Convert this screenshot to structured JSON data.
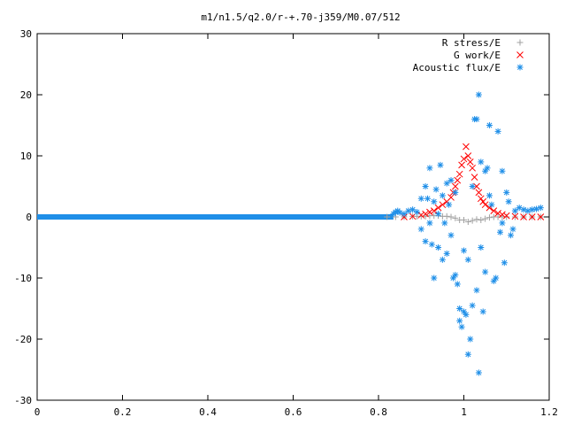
{
  "chart_data": {
    "type": "scatter",
    "title": "m1/n1.5/q2.0/r-+.70-j359/M0.07/512",
    "xlabel": "",
    "ylabel": "",
    "xlim": [
      0,
      1.2
    ],
    "ylim": [
      -30,
      30
    ],
    "x_ticks": [
      {
        "v": 0,
        "label": "0"
      },
      {
        "v": 0.2,
        "label": "0.2"
      },
      {
        "v": 0.4,
        "label": "0.4"
      },
      {
        "v": 0.6,
        "label": "0.6"
      },
      {
        "v": 0.8,
        "label": "0.8"
      },
      {
        "v": 1.0,
        "label": "1"
      },
      {
        "v": 1.2,
        "label": "1.2"
      }
    ],
    "y_ticks": [
      {
        "v": -30,
        "label": "-30"
      },
      {
        "v": -20,
        "label": "-20"
      },
      {
        "v": -10,
        "label": "-10"
      },
      {
        "v": 0,
        "label": "0"
      },
      {
        "v": 10,
        "label": "10"
      },
      {
        "v": 20,
        "label": "20"
      },
      {
        "v": 30,
        "label": "30"
      }
    ],
    "grid": false,
    "legend_position": "top-right",
    "series": [
      {
        "name": "R stress/E",
        "marker": "plus",
        "color": "#a0a0a0",
        "points": [
          [
            0.82,
            0
          ],
          [
            0.84,
            0
          ],
          [
            0.86,
            0
          ],
          [
            0.88,
            0.1
          ],
          [
            0.89,
            0.1
          ],
          [
            0.9,
            0.1
          ],
          [
            0.91,
            0.1
          ],
          [
            0.92,
            0.2
          ],
          [
            0.93,
            0.2
          ],
          [
            0.94,
            0.2
          ],
          [
            0.95,
            0.1
          ],
          [
            0.96,
            0.1
          ],
          [
            0.97,
            0
          ],
          [
            0.98,
            -0.2
          ],
          [
            0.99,
            -0.5
          ],
          [
            1.0,
            -0.5
          ],
          [
            1.01,
            -0.8
          ],
          [
            1.02,
            -0.6
          ],
          [
            1.03,
            -0.4
          ],
          [
            1.04,
            -0.5
          ],
          [
            1.05,
            -0.3
          ],
          [
            1.06,
            -0.1
          ],
          [
            1.07,
            0
          ],
          [
            1.08,
            0
          ],
          [
            1.09,
            0
          ],
          [
            1.1,
            0
          ],
          [
            1.12,
            0
          ],
          [
            1.14,
            0
          ],
          [
            1.16,
            0
          ],
          [
            1.18,
            0
          ]
        ]
      },
      {
        "name": "G work/E",
        "marker": "cross",
        "color": "#ff0000",
        "points": [
          [
            0.86,
            0
          ],
          [
            0.88,
            0.1
          ],
          [
            0.9,
            0.3
          ],
          [
            0.91,
            0.5
          ],
          [
            0.92,
            0.8
          ],
          [
            0.93,
            1.0
          ],
          [
            0.94,
            1.5
          ],
          [
            0.95,
            2.0
          ],
          [
            0.96,
            2.5
          ],
          [
            0.97,
            3.2
          ],
          [
            0.975,
            4.0
          ],
          [
            0.98,
            5.0
          ],
          [
            0.985,
            6.0
          ],
          [
            0.99,
            7.0
          ],
          [
            0.995,
            8.5
          ],
          [
            1.0,
            9.5
          ],
          [
            1.005,
            11.5
          ],
          [
            1.01,
            10.0
          ],
          [
            1.015,
            9.0
          ],
          [
            1.02,
            8.0
          ],
          [
            1.025,
            6.5
          ],
          [
            1.03,
            5.0
          ],
          [
            1.035,
            4.0
          ],
          [
            1.04,
            3.0
          ],
          [
            1.045,
            2.5
          ],
          [
            1.05,
            2.0
          ],
          [
            1.06,
            1.5
          ],
          [
            1.07,
            1.0
          ],
          [
            1.08,
            0.6
          ],
          [
            1.09,
            0.4
          ],
          [
            1.1,
            0.2
          ],
          [
            1.12,
            0.1
          ],
          [
            1.14,
            0
          ],
          [
            1.16,
            0
          ],
          [
            1.18,
            0
          ]
        ]
      },
      {
        "name": "Acoustic flux/E",
        "marker": "star",
        "color": "#1f8fe8",
        "points": [
          [
            0.835,
            0.5
          ],
          [
            0.84,
            0.8
          ],
          [
            0.845,
            1.0
          ],
          [
            0.85,
            0.7
          ],
          [
            0.86,
            0.5
          ],
          [
            0.87,
            1.0
          ],
          [
            0.88,
            1.2
          ],
          [
            0.89,
            0.8
          ],
          [
            0.9,
            3.0
          ],
          [
            0.9,
            -2.0
          ],
          [
            0.91,
            5.0
          ],
          [
            0.91,
            -4.0
          ],
          [
            0.915,
            3.0
          ],
          [
            0.92,
            -1.0
          ],
          [
            0.92,
            8.0
          ],
          [
            0.925,
            -4.5
          ],
          [
            0.93,
            -10.0
          ],
          [
            0.93,
            2.5
          ],
          [
            0.935,
            4.5
          ],
          [
            0.94,
            0.5
          ],
          [
            0.94,
            -5.0
          ],
          [
            0.945,
            8.5
          ],
          [
            0.95,
            -7.0
          ],
          [
            0.95,
            3.5
          ],
          [
            0.955,
            -1.0
          ],
          [
            0.96,
            5.5
          ],
          [
            0.96,
            -6.0
          ],
          [
            0.965,
            2.0
          ],
          [
            0.97,
            -3.0
          ],
          [
            0.97,
            6.0
          ],
          [
            0.975,
            -10.0
          ],
          [
            0.98,
            -9.5
          ],
          [
            0.98,
            4.0
          ],
          [
            0.985,
            -11.0
          ],
          [
            0.99,
            -15.0
          ],
          [
            0.99,
            -17.0
          ],
          [
            0.995,
            -18.0
          ],
          [
            1.0,
            -5.5
          ],
          [
            1.0,
            -15.5
          ],
          [
            1.005,
            -16.0
          ],
          [
            1.01,
            -22.5
          ],
          [
            1.01,
            -7.0
          ],
          [
            1.015,
            -20.0
          ],
          [
            1.02,
            5.0
          ],
          [
            1.02,
            -14.5
          ],
          [
            1.025,
            16.0
          ],
          [
            1.03,
            16.0
          ],
          [
            1.03,
            -12.0
          ],
          [
            1.035,
            -25.5
          ],
          [
            1.035,
            20.0
          ],
          [
            1.04,
            -5.0
          ],
          [
            1.04,
            9.0
          ],
          [
            1.045,
            -15.5
          ],
          [
            1.05,
            7.5
          ],
          [
            1.05,
            -9.0
          ],
          [
            1.055,
            8.0
          ],
          [
            1.06,
            15.0
          ],
          [
            1.06,
            3.5
          ],
          [
            1.065,
            2.0
          ],
          [
            1.07,
            -10.5
          ],
          [
            1.075,
            -10.0
          ],
          [
            1.08,
            14.0
          ],
          [
            1.085,
            -2.5
          ],
          [
            1.09,
            7.5
          ],
          [
            1.09,
            -1.0
          ],
          [
            1.095,
            -7.5
          ],
          [
            1.1,
            4.0
          ],
          [
            1.105,
            2.5
          ],
          [
            1.11,
            -3.0
          ],
          [
            1.115,
            -2.0
          ],
          [
            1.12,
            1.0
          ],
          [
            1.13,
            1.5
          ],
          [
            1.14,
            1.2
          ],
          [
            1.15,
            1.0
          ],
          [
            1.16,
            1.2
          ],
          [
            1.17,
            1.3
          ],
          [
            1.18,
            1.5
          ]
        ]
      }
    ]
  }
}
